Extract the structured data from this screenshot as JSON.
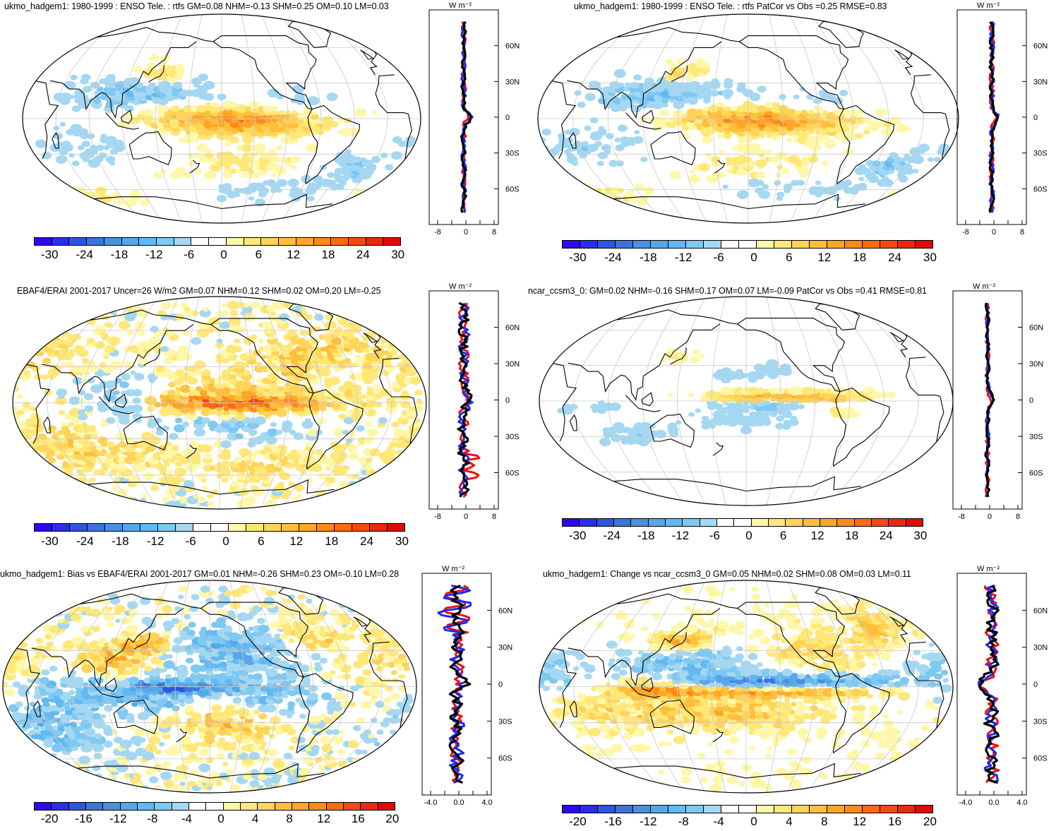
{
  "panels": [
    {
      "id": "p1",
      "title": "ukmo_hadgem1: 1980-1999 : ENSO Tele. : rtfs GM=0.08 NHM=-0.13 SHM=0.25 OM=0.10 LM=0.03",
      "colorbar_labels": [
        "-30",
        "-24",
        "-18",
        "-12",
        "-6",
        "0",
        "6",
        "12",
        "18",
        "24",
        "30"
      ],
      "profile_unit": "W m⁻²",
      "profile_lat_labels": [
        "60N",
        "30N",
        "0",
        "30S",
        "60S"
      ],
      "profile_x_labels": [
        "-8",
        "0",
        "8"
      ]
    },
    {
      "id": "p2",
      "title": "ukmo_hadgem1: 1980-1999 : ENSO Tele. : rtfs PatCor vs Obs =0.25 RMSE=0.83",
      "colorbar_labels": [
        "-30",
        "-24",
        "-18",
        "-12",
        "-6",
        "0",
        "6",
        "12",
        "18",
        "24",
        "30"
      ],
      "profile_unit": "W m⁻²",
      "profile_lat_labels": [
        "60N",
        "30N",
        "0",
        "30S",
        "60S"
      ],
      "profile_x_labels": [
        "-8",
        "0",
        "8"
      ]
    },
    {
      "id": "p3",
      "title": "EBAF4/ERAI 2001-2017 Uncer=26 W/m2 GM=0.07 NHM=0.12 SHM=0.02 OM=0.20 LM=-0.25",
      "colorbar_labels": [
        "-30",
        "-24",
        "-18",
        "-12",
        "-6",
        "0",
        "6",
        "12",
        "18",
        "24",
        "30"
      ],
      "profile_unit": "W m⁻²",
      "profile_lat_labels": [
        "60N",
        "30N",
        "0",
        "30S",
        "60S"
      ],
      "profile_x_labels": [
        "-8",
        "0",
        "8"
      ]
    },
    {
      "id": "p4",
      "title": "ncar_ccsm3_0: GM=0.02 NHM=-0.16 SHM=0.17 OM=0.07 LM=-0.09 PatCor vs Obs =0.41 RMSE=0.81",
      "colorbar_labels": [
        "-30",
        "-24",
        "-18",
        "-12",
        "-6",
        "0",
        "6",
        "12",
        "18",
        "24",
        "30"
      ],
      "profile_unit": "W m⁻²",
      "profile_lat_labels": [
        "60N",
        "30N",
        "0",
        "30S",
        "60S"
      ],
      "profile_x_labels": [
        "-8",
        "0",
        "8"
      ]
    },
    {
      "id": "p5",
      "title": "ukmo_hadgem1: Bias vs EBAF4/ERAI 2001-2017 GM=0.01 NHM=-0.26 SHM=0.23 OM=-0.10 LM=0.28",
      "colorbar_labels": [
        "-20",
        "-16",
        "-12",
        "-8",
        "-4",
        "0",
        "4",
        "8",
        "12",
        "16",
        "20"
      ],
      "profile_unit": "W m⁻²",
      "profile_lat_labels": [
        "60N",
        "30N",
        "0",
        "30S",
        "60S"
      ],
      "profile_x_labels": [
        "-4.0",
        "0.0",
        "4.0"
      ]
    },
    {
      "id": "p6",
      "title": "ukmo_hadgem1: Change vs ncar_ccsm3_0 GM=0.05 NHM=0.02 SHM=0.08 OM=0.03 LM=0.11",
      "colorbar_labels": [
        "-20",
        "-16",
        "-12",
        "-8",
        "-4",
        "0",
        "4",
        "8",
        "12",
        "16",
        "20"
      ],
      "profile_unit": "W m⁻²",
      "profile_lat_labels": [
        "60N",
        "30N",
        "0",
        "30S",
        "60S"
      ],
      "profile_x_labels": [
        "-4.0",
        "0.0",
        "4.0"
      ]
    }
  ],
  "colors": {
    "palette": [
      "#2a0af0",
      "#2a2ee8",
      "#2f55e0",
      "#3d73dc",
      "#4a8fe0",
      "#57a6ea",
      "#62b9f2",
      "#7ec8f2",
      "#a4d8f2",
      "#ffffff",
      "#ffffff",
      "#fff7a8",
      "#ffe878",
      "#ffd458",
      "#ffbf3c",
      "#ffa626",
      "#ff8a18",
      "#ff6a10",
      "#f44810",
      "#e82810",
      "#e00a0a"
    ],
    "line_red": "#ee1111",
    "line_blue": "#1a2cee",
    "line_black": "#000000",
    "grid": "#c8c8c8",
    "coast": "#000000"
  }
}
